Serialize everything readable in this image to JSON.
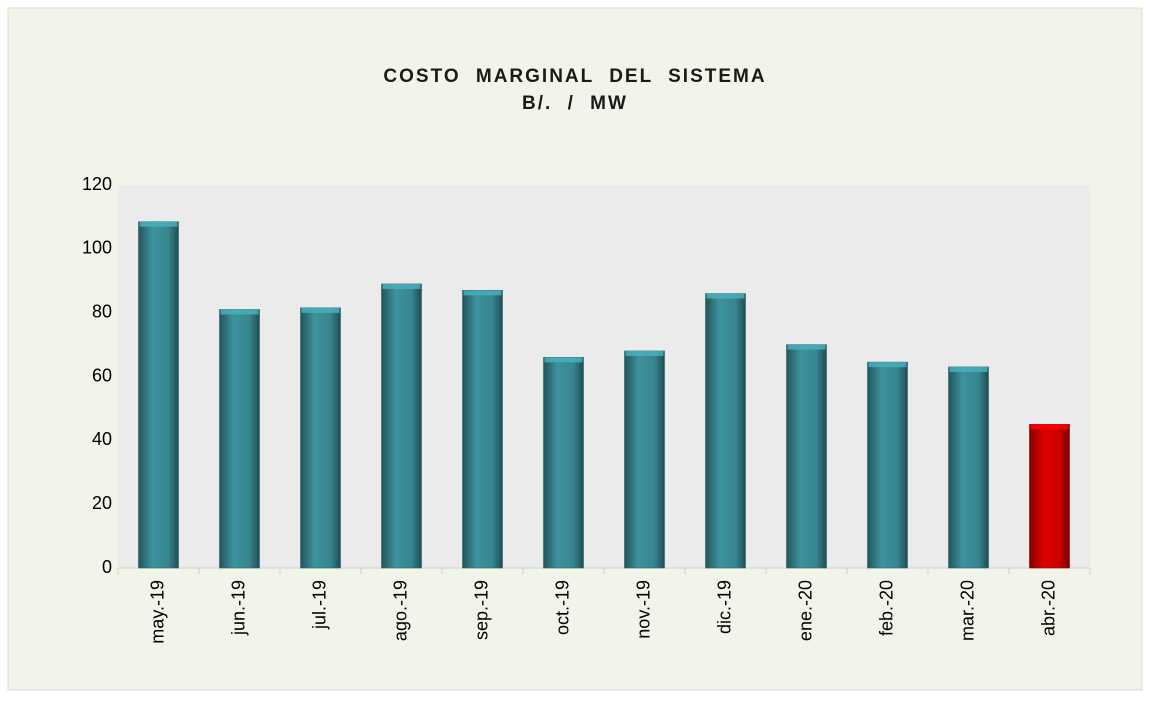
{
  "chart_data": {
    "type": "bar",
    "title": "COSTO MARGINAL DEL SISTEMA",
    "subtitle": "B/. / MW",
    "categories": [
      "may.-19",
      "jun.-19",
      "jul.-19",
      "ago.-19",
      "sep.-19",
      "oct.-19",
      "nov.-19",
      "dic.-19",
      "ene.-20",
      "feb.-20",
      "mar.-20",
      "abr.-20"
    ],
    "values": [
      108.5,
      81,
      81.5,
      89,
      87,
      66,
      68,
      86,
      70,
      64.5,
      63,
      45
    ],
    "colors": [
      "#3a8c96",
      "#3a8c96",
      "#3a8c96",
      "#3a8c96",
      "#3a8c96",
      "#3a8c96",
      "#3a8c96",
      "#3a8c96",
      "#3a8c96",
      "#3a8c96",
      "#3a8c96",
      "#d40000"
    ],
    "ylim": [
      0,
      120
    ],
    "yticks": [
      0,
      20,
      40,
      60,
      80,
      100,
      120
    ],
    "grid": false
  }
}
